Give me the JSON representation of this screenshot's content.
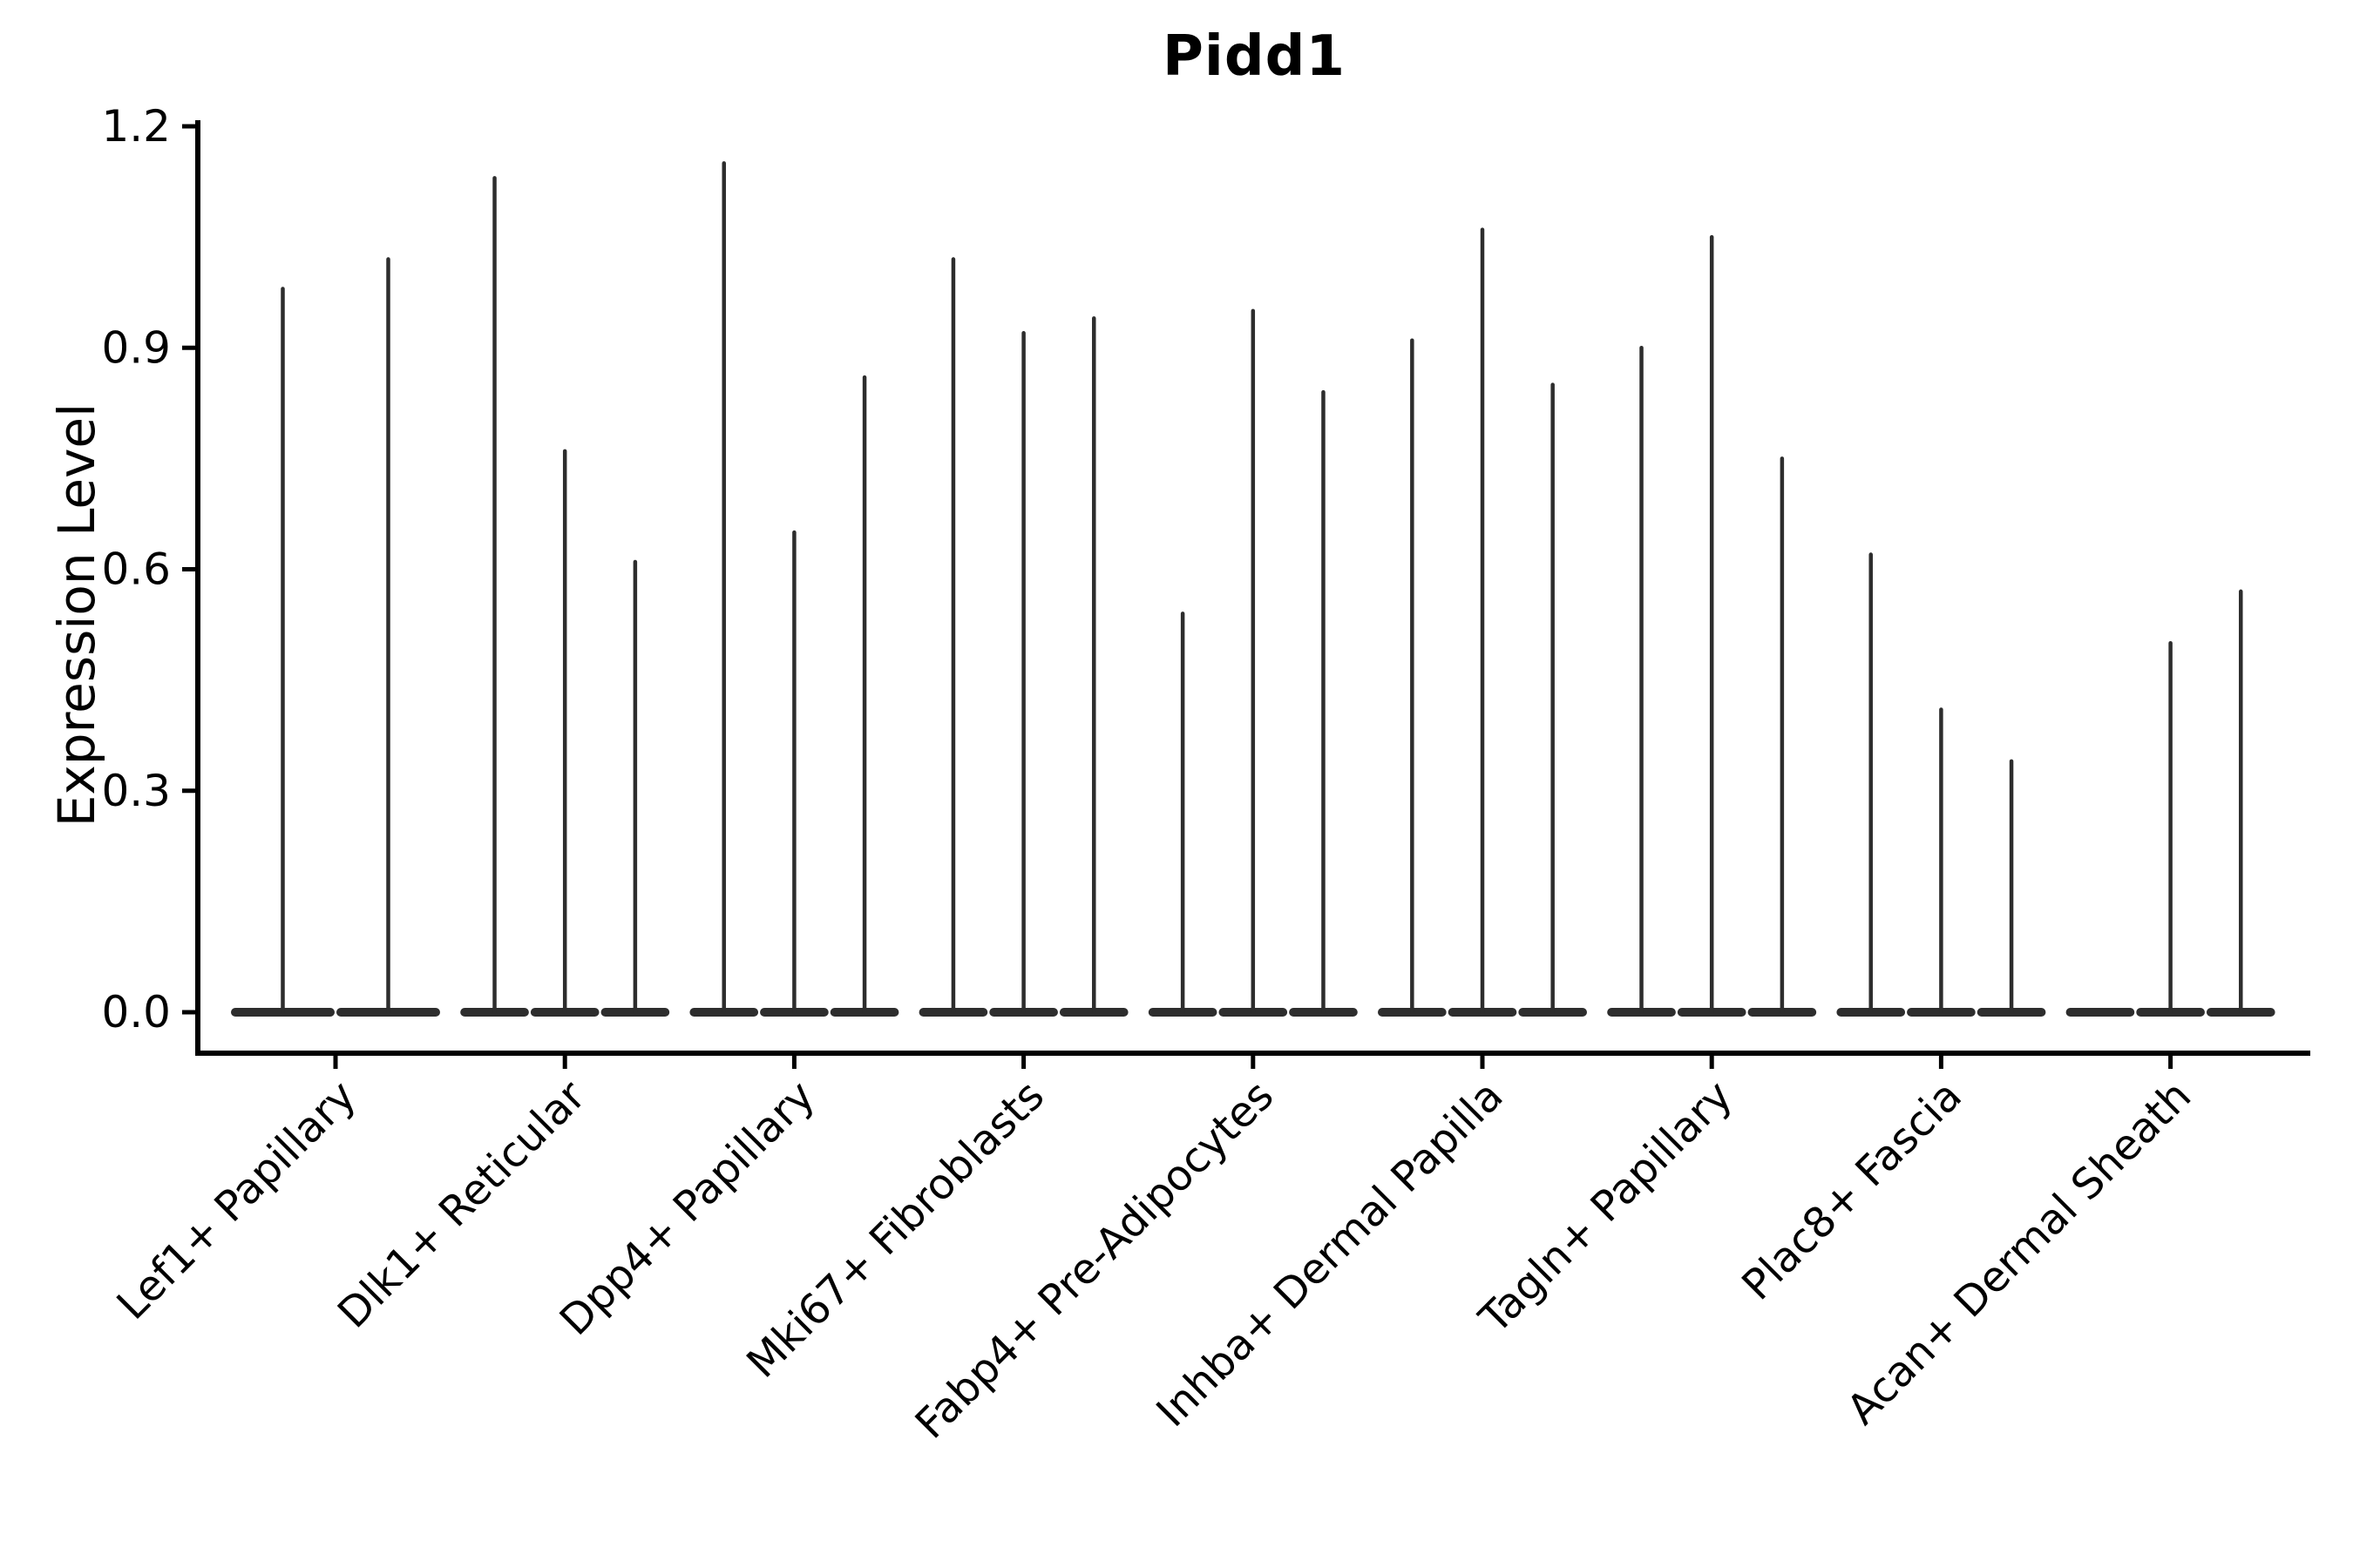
{
  "title": "Pidd1",
  "colors": {
    "violin": "#2d2d2d",
    "axis": "#000000",
    "text": "#000000",
    "background": "#ffffff"
  },
  "chart_data": {
    "type": "violin",
    "title": "Pidd1",
    "xlabel": "",
    "ylabel": "Expression Level",
    "ylim": [
      -0.06,
      1.21
    ],
    "yticks": [
      0.0,
      0.3,
      0.6,
      0.9,
      1.2
    ],
    "ytick_labels": [
      "0.0",
      "0.3",
      "0.6",
      "0.9",
      "1.2"
    ],
    "grid": false,
    "legend": null,
    "description": "Violin plot of Pidd1 expression. Each category shows 2-3 thin spike-like violins with a wide flat base at 0; spike value = maximum expression level reached. A value of 0 means the violin is flat (no spike).",
    "categories": [
      "Lef1+ Papillary",
      "Dlk1+ Reticular",
      "Dpp4+ Papillary",
      "Mki67+ Fibroblasts",
      "Fabp4+ Pre-Adipocytes",
      "Inhba+ Dermal Papilla",
      "Tagln+ Papillary",
      "Plac8+ Fascia",
      "Acan+ Dermal Sheath"
    ],
    "series": [
      {
        "category": "Lef1+ Papillary",
        "n_violins": 2,
        "spike_max_values": [
          0.98,
          1.02
        ]
      },
      {
        "category": "Dlk1+ Reticular",
        "n_violins": 3,
        "spike_max_values": [
          1.13,
          0.76,
          0.61
        ]
      },
      {
        "category": "Dpp4+ Papillary",
        "n_violins": 3,
        "spike_max_values": [
          1.15,
          0.65,
          0.86
        ]
      },
      {
        "category": "Mki67+ Fibroblasts",
        "n_violins": 3,
        "spike_max_values": [
          1.02,
          0.92,
          0.94
        ]
      },
      {
        "category": "Fabp4+ Pre-Adipocytes",
        "n_violins": 3,
        "spike_max_values": [
          0.54,
          0.95,
          0.84
        ]
      },
      {
        "category": "Inhba+ Dermal Papilla",
        "n_violins": 3,
        "spike_max_values": [
          0.91,
          1.06,
          0.85
        ]
      },
      {
        "category": "Tagln+ Papillary",
        "n_violins": 3,
        "spike_max_values": [
          0.9,
          1.05,
          0.75
        ]
      },
      {
        "category": "Plac8+ Fascia",
        "n_violins": 3,
        "spike_max_values": [
          0.62,
          0.41,
          0.34
        ]
      },
      {
        "category": "Acan+ Dermal Sheath",
        "n_violins": 3,
        "spike_max_values": [
          0.0,
          0.5,
          0.57
        ]
      }
    ]
  }
}
